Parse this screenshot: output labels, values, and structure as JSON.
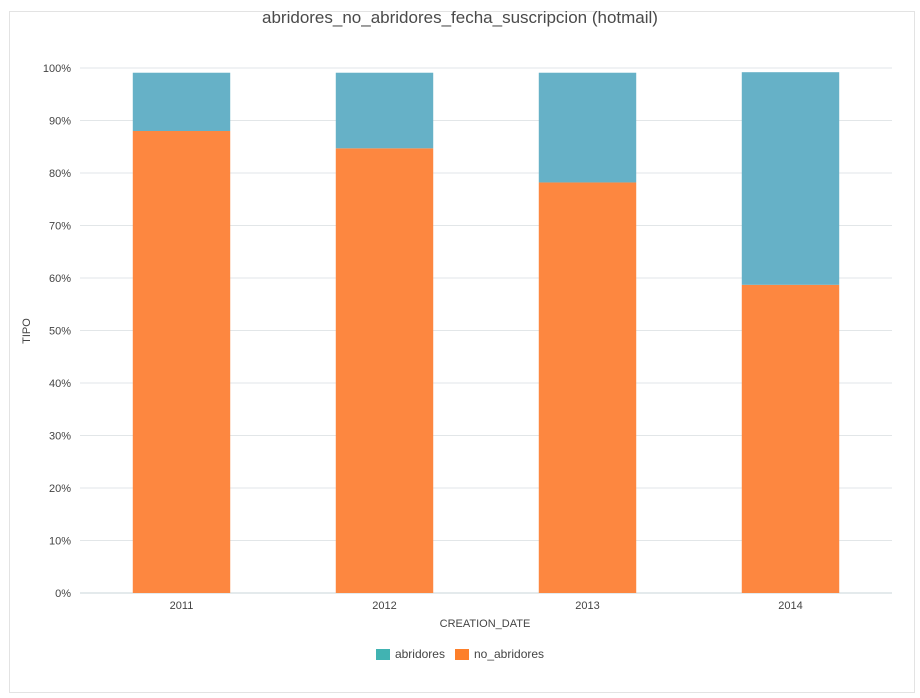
{
  "chart_data": {
    "type": "bar",
    "stacked": true,
    "title": "abridores_no_abridores_fecha_suscripcion (hotmail)",
    "xlabel": "CREATION_DATE",
    "ylabel": "TIPO",
    "categories": [
      "2011",
      "2012",
      "2013",
      "2014"
    ],
    "ylim": [
      0,
      100
    ],
    "yticks": [
      "0%",
      "10%",
      "20%",
      "30%",
      "40%",
      "50%",
      "60%",
      "70%",
      "80%",
      "90%",
      "100%"
    ],
    "grid": true,
    "legend_position": "bottom",
    "series": [
      {
        "name": "no_abridores",
        "values": [
          88,
          84.7,
          78.2,
          58.7
        ],
        "color": "#fd8740"
      },
      {
        "name": "abridores",
        "values": [
          11.1,
          14.4,
          20.9,
          40.5
        ],
        "color": "#66b1c7"
      }
    ],
    "legend": [
      {
        "name": "abridores",
        "color": "#41b3b2"
      },
      {
        "name": "no_abridores",
        "color": "#fd7f2a"
      }
    ]
  }
}
